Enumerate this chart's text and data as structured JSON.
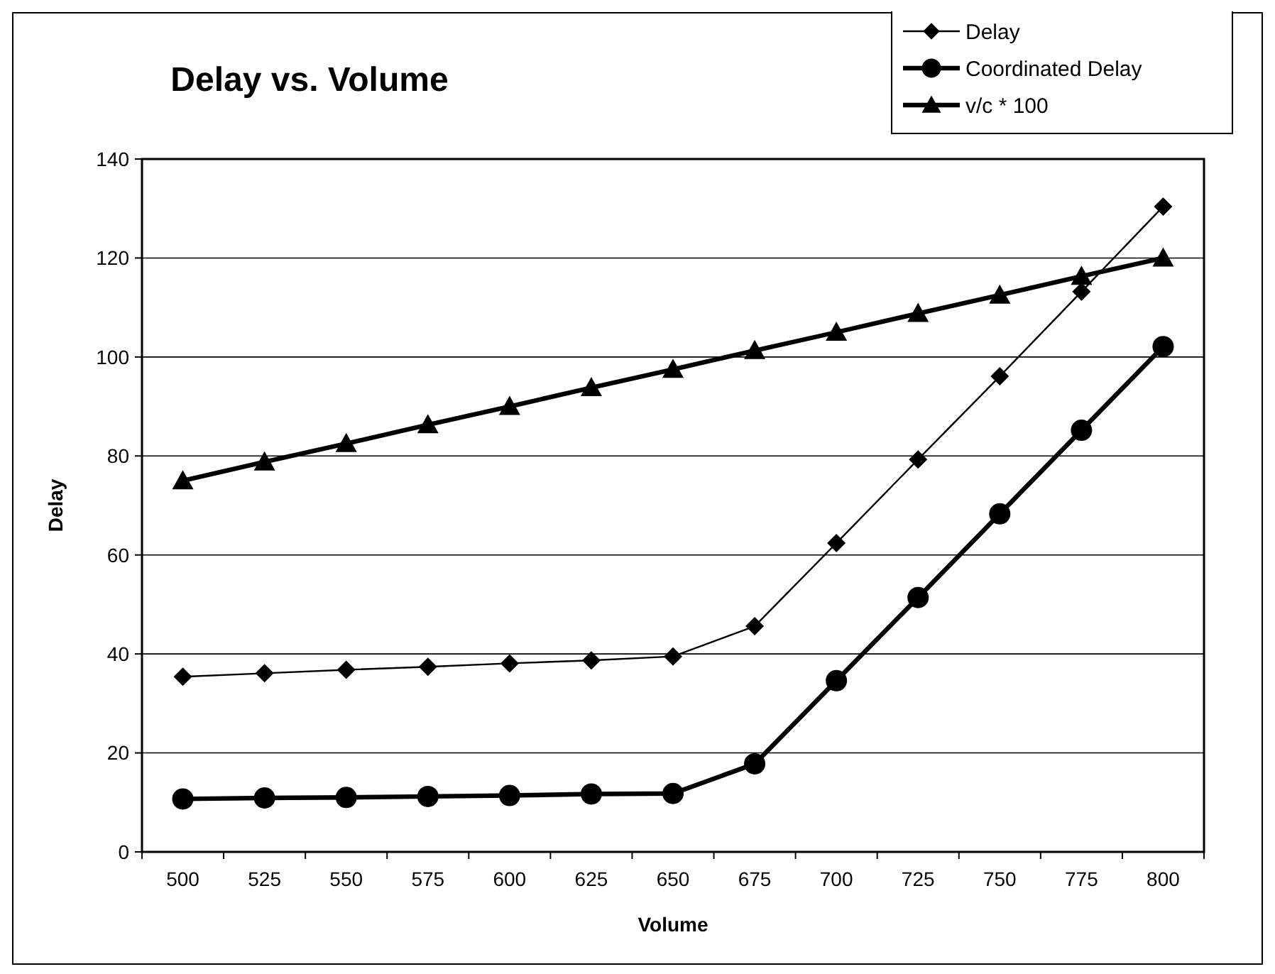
{
  "chart_data": {
    "type": "line",
    "title": "Delay vs. Volume",
    "xlabel": "Volume",
    "ylabel": "Delay",
    "categories": [
      "500",
      "525",
      "550",
      "575",
      "600",
      "625",
      "650",
      "675",
      "700",
      "725",
      "750",
      "775",
      "800"
    ],
    "series": [
      {
        "name": "Delay",
        "color": "#000000",
        "marker": "diamond",
        "values": [
          35.4,
          36.1,
          36.8,
          37.4,
          38.1,
          38.7,
          39.5,
          45.6,
          62.4,
          79.3,
          96.1,
          113.2,
          130.4
        ]
      },
      {
        "name": "Coordinated Delay",
        "color": "#000000",
        "marker": "circle",
        "values": [
          10.7,
          10.9,
          11.0,
          11.2,
          11.4,
          11.7,
          11.8,
          17.8,
          34.6,
          51.4,
          68.3,
          85.2,
          102.1
        ]
      },
      {
        "name": "v/c * 100",
        "color": "#000000",
        "marker": "triangle",
        "values": [
          75,
          78.8,
          82.5,
          86.3,
          90,
          93.8,
          97.5,
          101.3,
          105,
          108.8,
          112.5,
          116.3,
          120
        ]
      }
    ],
    "ylim": [
      0,
      140
    ],
    "yticks": [
      0,
      20,
      40,
      60,
      80,
      100,
      120,
      140
    ],
    "grid": "y",
    "legend": "top right",
    "line_style": "solid"
  }
}
